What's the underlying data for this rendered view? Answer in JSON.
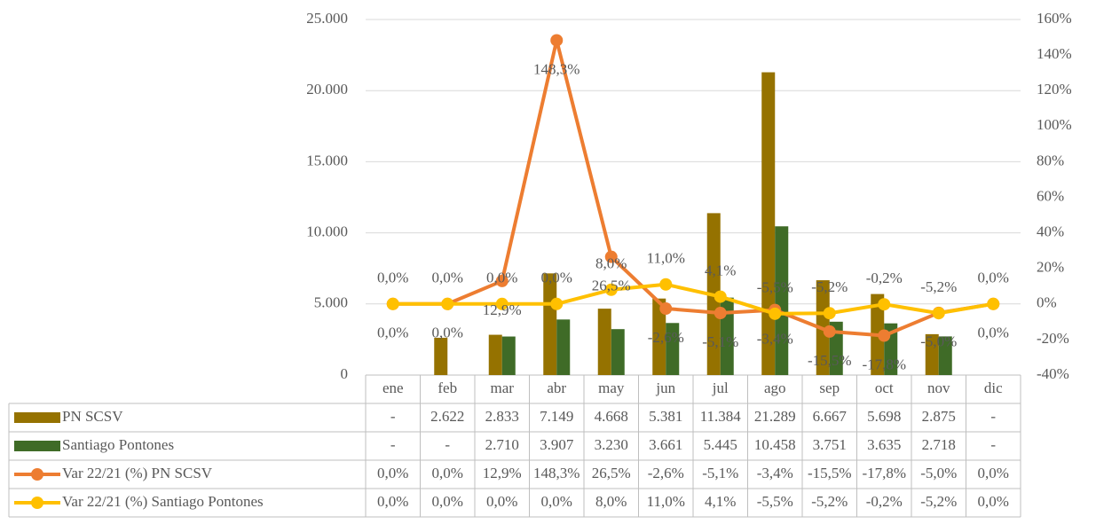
{
  "chart_data": {
    "type": "bar_line_table",
    "categories": [
      "ene",
      "feb",
      "mar",
      "abr",
      "may",
      "jun",
      "jul",
      "ago",
      "sep",
      "oct",
      "nov",
      "dic"
    ],
    "series": [
      {
        "name": "PN SCSV",
        "color": "#957200",
        "type": "bar",
        "values": [
          null,
          2622,
          2833,
          7149,
          4668,
          5381,
          11384,
          21289,
          6667,
          5698,
          2875,
          null
        ],
        "value_labels": [
          "-",
          "2.622",
          "2.833",
          "7.149",
          "4.668",
          "5.381",
          "11.384",
          "21.289",
          "6.667",
          "5.698",
          "2.875",
          "-"
        ]
      },
      {
        "name": "Santiago Pontones",
        "color": "#3f6b27",
        "type": "bar",
        "values": [
          null,
          null,
          2710,
          3907,
          3230,
          3661,
          5445,
          10458,
          3751,
          3635,
          2718,
          null
        ],
        "value_labels": [
          "-",
          "-",
          "2.710",
          "3.907",
          "3.230",
          "3.661",
          "5.445",
          "10.458",
          "3.751",
          "3.635",
          "2.718",
          "-"
        ]
      },
      {
        "name": "Var 22/21 (%) PN SCSV",
        "color": "#ed7d31",
        "type": "line",
        "axis": "y2",
        "values": [
          0.0,
          0.0,
          12.9,
          148.3,
          26.5,
          -2.6,
          -5.1,
          -3.4,
          -15.5,
          -17.8,
          -5.0,
          0.0
        ],
        "value_labels": [
          "0,0%",
          "0,0%",
          "12,9%",
          "148,3%",
          "26,5%",
          "-2,6%",
          "-5,1%",
          "-3,4%",
          "-15,5%",
          "-17,8%",
          "-5,0%",
          "0,0%"
        ]
      },
      {
        "name": "Var 22/21 (%) Santiago Pontones",
        "color": "#ffc000",
        "type": "line",
        "axis": "y2",
        "values": [
          0.0,
          0.0,
          0.0,
          0.0,
          8.0,
          11.0,
          4.1,
          -5.5,
          -5.2,
          -0.2,
          -5.2,
          0.0
        ],
        "value_labels": [
          "0,0%",
          "0,0%",
          "0,0%",
          "0,0%",
          "8,0%",
          "11,0%",
          "4,1%",
          "-5,5%",
          "-5,2%",
          "-0,2%",
          "-5,2%",
          "0,0%"
        ]
      }
    ],
    "ylim": [
      0,
      25000
    ],
    "yticks": [
      0,
      {
        "value": 5000,
        "label": "5.000"
      },
      {
        "value": 10000,
        "label": "10.000"
      },
      {
        "value": 15000,
        "label": "15.000"
      },
      {
        "value": 20000,
        "label": "20.000"
      },
      {
        "value": 25000,
        "label": "25.000"
      }
    ],
    "y2lim": [
      -40,
      160
    ],
    "y2ticks": [
      {
        "value": -40,
        "label": "-40%"
      },
      {
        "value": -20,
        "label": "-20%"
      },
      {
        "value": 0,
        "label": "0%"
      },
      {
        "value": 20,
        "label": "20%"
      },
      {
        "value": 40,
        "label": "40%"
      },
      {
        "value": 60,
        "label": "60%"
      },
      {
        "value": 80,
        "label": "80%"
      },
      {
        "value": 100,
        "label": "100%"
      },
      {
        "value": 120,
        "label": "120%"
      },
      {
        "value": 140,
        "label": "140%"
      },
      {
        "value": 160,
        "label": "160%"
      }
    ],
    "grid": true
  }
}
